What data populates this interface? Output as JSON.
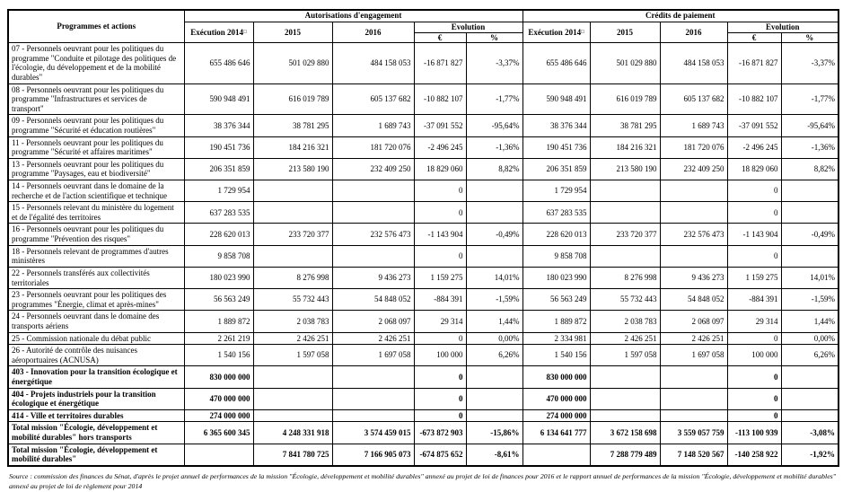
{
  "table": {
    "header": {
      "programmes": "Programmes et actions",
      "group_ae": "Autorisations d'engagement",
      "group_cp": "Crédits de paiement",
      "exec_label": "Exécution 2014",
      "exec_marker": "□",
      "y2015": "2015",
      "y2016": "2016",
      "evolution": "Evolution",
      "euro": "€",
      "percent": "%"
    },
    "rows": [
      {
        "label": "07 - Personnels oeuvrant pour les politiques du programme \"Conduite et pilotage des politiques de l'écologie, du développement et de la mobilité durables\"",
        "bold": false,
        "ae": [
          "655 486 646",
          "501 029 880",
          "484 158 053",
          "-16 871 827",
          "-3,37%"
        ],
        "cp": [
          "655 486 646",
          "501 029 880",
          "484 158 053",
          "-16 871 827",
          "-3,37%"
        ]
      },
      {
        "label": "08 - Personnels oeuvrant pour les politiques du programme \"Infrastructures et services de transport\"",
        "bold": false,
        "ae": [
          "590 948 491",
          "616 019 789",
          "605 137 682",
          "-10 882 107",
          "-1,77%"
        ],
        "cp": [
          "590 948 491",
          "616 019 789",
          "605 137 682",
          "-10 882 107",
          "-1,77%"
        ]
      },
      {
        "label": "09 - Personnels oeuvrant pour les politiques du programme \"Sécurité et éducation routières\"",
        "bold": false,
        "ae": [
          "38 376 344",
          "38 781 295",
          "1 689 743",
          "-37 091 552",
          "-95,64%"
        ],
        "cp": [
          "38 376 344",
          "38 781 295",
          "1 689 743",
          "-37 091 552",
          "-95,64%"
        ]
      },
      {
        "label": "11 - Personnels oeuvrant pour les politiques du programme \"Sécurité et affaires maritimes\"",
        "bold": false,
        "ae": [
          "190 451 736",
          "184 216 321",
          "181 720 076",
          "-2 496 245",
          "-1,36%"
        ],
        "cp": [
          "190 451 736",
          "184 216 321",
          "181 720 076",
          "-2 496 245",
          "-1,36%"
        ]
      },
      {
        "label": "13 - Personnels oeuvrant pour les politiques du programme \"Paysages, eau et biodiversité\"",
        "bold": false,
        "ae": [
          "206 351 859",
          "213 580 190",
          "232 409 250",
          "18 829 060",
          "8,82%"
        ],
        "cp": [
          "206 351 859",
          "213 580 190",
          "232 409 250",
          "18 829 060",
          "8,82%"
        ]
      },
      {
        "label": "14 - Personnels oeuvrant dans le domaine de la recherche et de l'action scientifique et technique",
        "bold": false,
        "ae": [
          "1 729 954",
          "",
          "",
          "0",
          ""
        ],
        "cp": [
          "1 729 954",
          "",
          "",
          "0",
          ""
        ]
      },
      {
        "label": "15 - Personnels relevant du ministère du logement et de l'égalité des territoires",
        "bold": false,
        "ae": [
          "637 283 535",
          "",
          "",
          "0",
          ""
        ],
        "cp": [
          "637 283 535",
          "",
          "",
          "0",
          ""
        ]
      },
      {
        "label": "16 - Personnels oeuvrant pour les politiques du programme \"Prévention des risques\"",
        "bold": false,
        "ae": [
          "228 620 013",
          "233 720 377",
          "232 576 473",
          "-1 143 904",
          "-0,49%"
        ],
        "cp": [
          "228 620 013",
          "233 720 377",
          "232 576 473",
          "-1 143 904",
          "-0,49%"
        ]
      },
      {
        "label": "18 - Personnels relevant de programmes d'autres ministères",
        "bold": false,
        "ae": [
          "9 858 708",
          "",
          "",
          "0",
          ""
        ],
        "cp": [
          "9 858 708",
          "",
          "",
          "0",
          ""
        ]
      },
      {
        "label": "22 - Personnels transférés aux collectivités territoriales",
        "bold": false,
        "ae": [
          "180 023 990",
          "8 276 998",
          "9 436 273",
          "1 159 275",
          "14,01%"
        ],
        "cp": [
          "180 023 990",
          "8 276 998",
          "9 436 273",
          "1 159 275",
          "14,01%"
        ]
      },
      {
        "label": "23 - Personnels oeuvrant pour les politiques des programmes \"Énergie, climat et après-mines\"",
        "bold": false,
        "ae": [
          "56 563 249",
          "55 732 443",
          "54 848 052",
          "-884 391",
          "-1,59%"
        ],
        "cp": [
          "56 563 249",
          "55 732 443",
          "54 848 052",
          "-884 391",
          "-1,59%"
        ]
      },
      {
        "label": "24 - Personnels oeuvrant dans le domaine des transports aériens",
        "bold": false,
        "ae": [
          "1 889 872",
          "2 038 783",
          "2 068 097",
          "29 314",
          "1,44%"
        ],
        "cp": [
          "1 889 872",
          "2 038 783",
          "2 068 097",
          "29 314",
          "1,44%"
        ]
      },
      {
        "label": "25 - Commission nationale du débat public",
        "bold": false,
        "ae": [
          "2 261 219",
          "2 426 251",
          "2 426 251",
          "0",
          "0,00%"
        ],
        "cp": [
          "2 334 981",
          "2 426 251",
          "2 426 251",
          "0",
          "0,00%"
        ]
      },
      {
        "label": "26 - Autorité de contrôle des nuisances aéroportuaires (ACNUSA)",
        "bold": false,
        "ae": [
          "1 540 156",
          "1 597 058",
          "1 697 058",
          "100 000",
          "6,26%"
        ],
        "cp": [
          "1 540 156",
          "1 597 058",
          "1 697 058",
          "100 000",
          "6,26%"
        ]
      },
      {
        "label": "403 - Innovation pour la transition écologique et énergétique",
        "bold": true,
        "ae": [
          "830 000 000",
          "",
          "",
          "0",
          ""
        ],
        "cp": [
          "830 000 000",
          "",
          "",
          "0",
          ""
        ]
      },
      {
        "label": "404 - Projets industriels pour la transition écologique et énergétique",
        "bold": true,
        "ae": [
          "470 000 000",
          "",
          "",
          "0",
          ""
        ],
        "cp": [
          "470 000 000",
          "",
          "",
          "0",
          ""
        ]
      },
      {
        "label": "414 - Ville et territoires durables",
        "bold": true,
        "ae": [
          "274 000 000",
          "",
          "",
          "0",
          ""
        ],
        "cp": [
          "274 000 000",
          "",
          "",
          "0",
          ""
        ]
      },
      {
        "label": "Total mission \"Écologie, développement et mobilité durables\" hors transports",
        "bold": true,
        "ae": [
          "6 365 600 345",
          "4 248 331 918",
          "3 574 459 015",
          "-673 872 903",
          "-15,86%"
        ],
        "cp": [
          "6 134 641 777",
          "3 672 158 698",
          "3 559 057 759",
          "-113 100 939",
          "-3,08%"
        ]
      },
      {
        "label": "Total mission \"Écologie, développement et mobilité durables\"",
        "bold": true,
        "ae": [
          "",
          "7 841 780 725",
          "7 166 905 073",
          "-674 875 652",
          "-8,61%"
        ],
        "cp": [
          "",
          "7 288 779 489",
          "7 148 520 567",
          "-140 258 922",
          "-1,92%"
        ]
      }
    ]
  },
  "footer": {
    "source": "Source : commission des finances du Sénat, d'après le projet annuel de performances de la mission \"Écologie, développement et mobilité durables\" annexé au projet de loi de finances pour 2016 et le rapport annuel de performances de la mission \"Écologie, développement et mobilité durables\" annexé au projet de loi de règlement pour 2014"
  }
}
